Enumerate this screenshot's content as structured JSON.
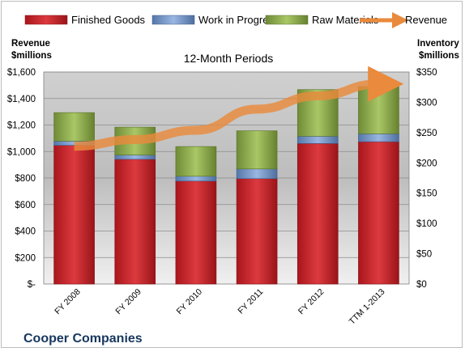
{
  "chart_data": {
    "type": "bar",
    "stacked": true,
    "subtitle": "12-Month Periods",
    "company": "Cooper Companies",
    "left_axis": {
      "title_line1": "Revenue",
      "title_line2": "$millions",
      "min": 0,
      "max": 1600,
      "step": 200,
      "tick_labels": [
        "$-",
        "$200",
        "$400",
        "$600",
        "$800",
        "$1,000",
        "$1,200",
        "$1,400",
        "$1,600"
      ]
    },
    "right_axis": {
      "title_line1": "Inventory",
      "title_line2": "$millions",
      "min": 0,
      "max": 350,
      "step": 50,
      "tick_labels": [
        "$0",
        "$50",
        "$100",
        "$150",
        "$200",
        "$250",
        "$300",
        "$350"
      ]
    },
    "categories": [
      "FY 2008",
      "FY 2009",
      "FY 2010",
      "FY 2011",
      "FY 2012",
      "TTM 1-2013"
    ],
    "series": [
      {
        "name": "Finished Goods",
        "axis": "right",
        "color": "#c0272d",
        "values": [
          229,
          206,
          170,
          174,
          232,
          235
        ]
      },
      {
        "name": "Work in Progress",
        "axis": "right",
        "color": "#6f93c9",
        "values": [
          7,
          7,
          8,
          16,
          12,
          13
        ]
      },
      {
        "name": "Raw Materials",
        "axis": "right",
        "color": "#9bbb59",
        "values": [
          47,
          46,
          49,
          63,
          77,
          78
        ]
      }
    ],
    "line": {
      "name": "Revenue",
      "axis": "left",
      "color": "#e98a3c",
      "values": [
        1040,
        1090,
        1160,
        1320,
        1420,
        1510
      ]
    },
    "grid": true,
    "legend_position": "top"
  }
}
